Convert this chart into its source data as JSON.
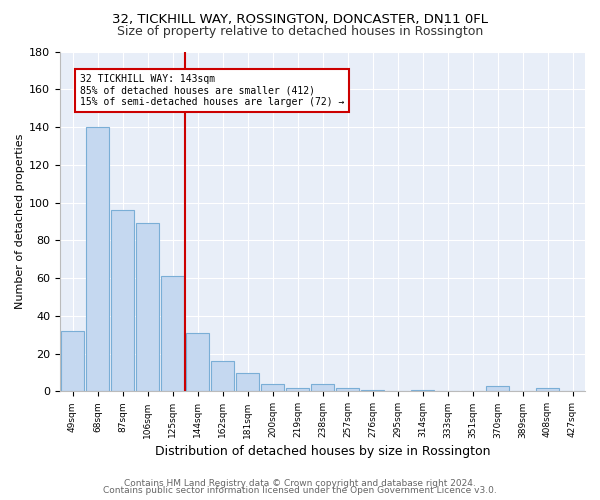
{
  "title": "32, TICKHILL WAY, ROSSINGTON, DONCASTER, DN11 0FL",
  "subtitle": "Size of property relative to detached houses in Rossington",
  "xlabel": "Distribution of detached houses by size in Rossington",
  "ylabel": "Number of detached properties",
  "categories": [
    "49sqm",
    "68sqm",
    "87sqm",
    "106sqm",
    "125sqm",
    "144sqm",
    "162sqm",
    "181sqm",
    "200sqm",
    "219sqm",
    "238sqm",
    "257sqm",
    "276sqm",
    "295sqm",
    "314sqm",
    "333sqm",
    "351sqm",
    "370sqm",
    "389sqm",
    "408sqm",
    "427sqm"
  ],
  "values": [
    32,
    140,
    96,
    89,
    61,
    31,
    16,
    10,
    4,
    2,
    4,
    2,
    1,
    0,
    1,
    0,
    0,
    3,
    0,
    2,
    0
  ],
  "bar_color": "#c5d8f0",
  "bar_edge_color": "#7aaed6",
  "ylim": [
    0,
    180
  ],
  "yticks": [
    0,
    20,
    40,
    60,
    80,
    100,
    120,
    140,
    160,
    180
  ],
  "vline_x": 4.5,
  "vline_color": "#cc0000",
  "annotation_line1": "32 TICKHILL WAY: 143sqm",
  "annotation_line2": "85% of detached houses are smaller (412)",
  "annotation_line3": "15% of semi-detached houses are larger (72) →",
  "ann_box_edge_color": "#cc0000",
  "footer_line1": "Contains HM Land Registry data © Crown copyright and database right 2024.",
  "footer_line2": "Contains public sector information licensed under the Open Government Licence v3.0.",
  "bg_color": "#e8eef8",
  "fig_bg_color": "#ffffff",
  "title_fontsize": 9.5,
  "subtitle_fontsize": 9,
  "ylabel_fontsize": 8,
  "xlabel_fontsize": 9,
  "footer_fontsize": 6.5
}
